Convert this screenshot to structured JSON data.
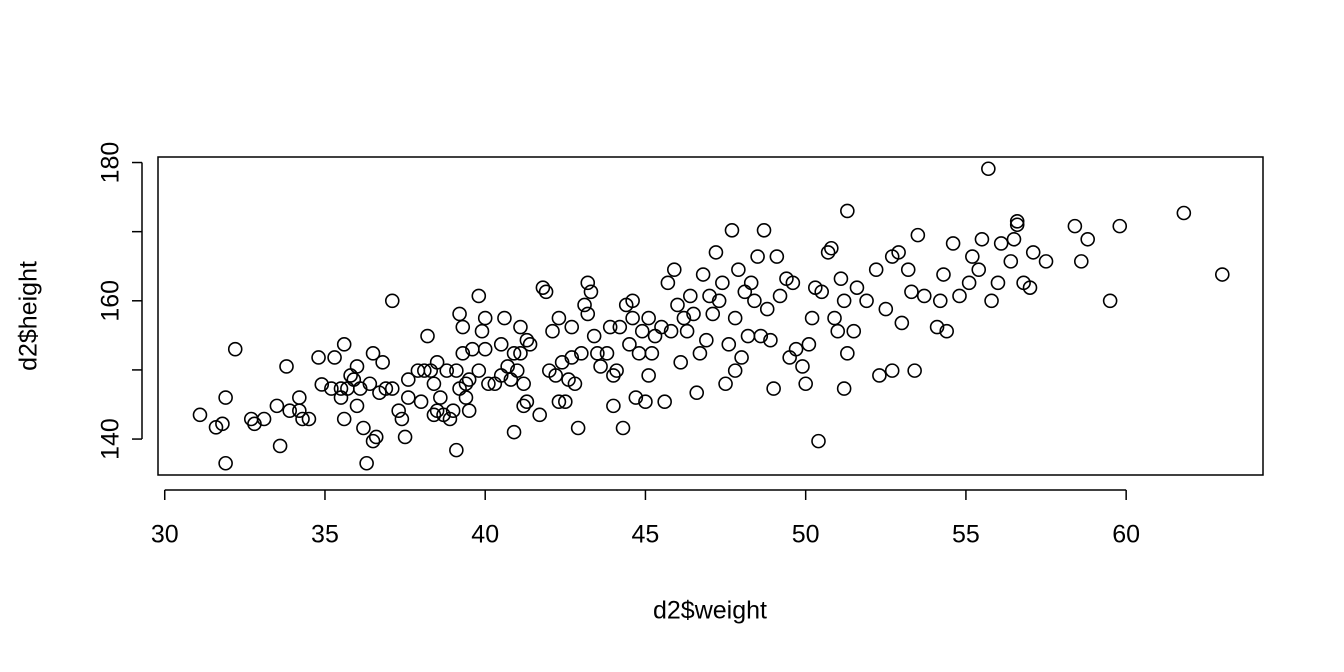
{
  "chart_data": {
    "type": "scatter",
    "xlabel": "d2$weight",
    "ylabel": "d2$height",
    "xlim": [
      29.79,
      64.27
    ],
    "ylim": [
      134.8,
      180.8
    ],
    "xticks": [
      30,
      35,
      40,
      45,
      50,
      55,
      60
    ],
    "yticks": [
      140,
      160,
      180
    ],
    "yminor_ticks": [
      150,
      170
    ],
    "color": "#000000",
    "x": [
      31.1,
      31.6,
      31.8,
      31.9,
      31.9,
      32.2,
      32.7,
      32.8,
      33.1,
      33.5,
      33.6,
      33.8,
      33.9,
      34.2,
      34.2,
      34.3,
      34.5,
      34.8,
      34.9,
      35.2,
      35.3,
      35.5,
      35.5,
      35.6,
      35.6,
      35.7,
      35.8,
      35.9,
      36.0,
      36.1,
      36.0,
      36.2,
      36.4,
      36.3,
      36.5,
      36.5,
      36.6,
      36.7,
      36.8,
      36.9,
      37.1,
      37.1,
      37.3,
      37.4,
      37.5,
      37.6,
      37.6,
      37.9,
      38.0,
      38.1,
      38.2,
      38.3,
      38.4,
      38.4,
      38.5,
      38.5,
      38.6,
      38.7,
      38.8,
      38.9,
      39.0,
      39.1,
      39.1,
      39.2,
      39.2,
      39.3,
      39.3,
      39.4,
      39.4,
      39.5,
      39.5,
      39.6,
      39.8,
      39.8,
      39.9,
      40.0,
      40.0,
      40.1,
      40.3,
      40.5,
      40.5,
      40.6,
      40.7,
      40.8,
      40.9,
      40.9,
      41.0,
      41.1,
      41.1,
      41.2,
      41.2,
      41.3,
      41.3,
      41.4,
      41.7,
      41.8,
      41.9,
      42.0,
      42.1,
      42.2,
      42.3,
      42.3,
      42.4,
      42.5,
      42.6,
      42.7,
      42.7,
      42.8,
      42.9,
      43.0,
      43.1,
      43.2,
      43.2,
      43.3,
      43.4,
      43.5,
      43.6,
      43.8,
      43.9,
      44.0,
      44.0,
      44.1,
      44.2,
      44.3,
      44.4,
      44.5,
      44.6,
      44.6,
      44.7,
      44.8,
      44.9,
      45.0,
      45.1,
      45.1,
      45.2,
      45.3,
      45.5,
      45.6,
      45.7,
      45.8,
      45.9,
      46.0,
      46.1,
      46.2,
      46.3,
      46.4,
      46.5,
      46.6,
      46.7,
      46.8,
      46.9,
      47.0,
      47.1,
      47.2,
      47.3,
      47.4,
      47.5,
      47.6,
      47.7,
      47.8,
      47.8,
      47.9,
      48.0,
      48.1,
      48.2,
      48.3,
      48.4,
      48.5,
      48.6,
      48.7,
      48.8,
      48.9,
      49.0,
      49.1,
      49.2,
      49.4,
      49.5,
      49.6,
      49.7,
      49.9,
      50.0,
      50.1,
      50.2,
      50.3,
      50.4,
      50.5,
      50.7,
      50.8,
      50.9,
      51.0,
      51.1,
      51.2,
      51.2,
      51.3,
      51.3,
      51.5,
      51.6,
      51.9,
      52.2,
      52.3,
      52.5,
      52.7,
      52.7,
      52.9,
      53.0,
      53.2,
      53.3,
      53.4,
      53.5,
      53.7,
      54.1,
      54.2,
      54.3,
      54.4,
      54.6,
      54.8,
      55.1,
      55.2,
      55.4,
      55.5,
      55.7,
      55.8,
      56.0,
      56.1,
      56.4,
      56.5,
      56.6,
      56.6,
      56.8,
      57.0,
      57.1,
      57.5,
      58.4,
      58.6,
      58.8,
      59.5,
      59.8,
      61.8,
      63.0
    ],
    "values": [
      143.5,
      141.7,
      142.2,
      136.5,
      146,
      153,
      142.9,
      142.2,
      142.9,
      144.8,
      139,
      150.5,
      144.1,
      146,
      144.1,
      142.9,
      142.9,
      151.8,
      147.9,
      147.3,
      151.8,
      147.3,
      146,
      153.7,
      142.9,
      147.3,
      149.2,
      148.6,
      150.5,
      147.3,
      144.8,
      141.6,
      148,
      136.5,
      152.4,
      139.7,
      140.3,
      146.7,
      151.1,
      147.3,
      147.3,
      160,
      144.1,
      142.9,
      140.3,
      146,
      148.6,
      149.9,
      145.4,
      149.9,
      154.9,
      149.9,
      148,
      143.5,
      144.1,
      151.1,
      146,
      143.5,
      149.9,
      142.9,
      144.1,
      149.9,
      138.4,
      147.3,
      158.1,
      156.2,
      152.4,
      148,
      146,
      144.1,
      148.6,
      153,
      160.7,
      149.9,
      155.6,
      157.5,
      153,
      148,
      148,
      149.2,
      153.7,
      157.5,
      150.5,
      148.6,
      152.4,
      141,
      149.9,
      156.2,
      152.4,
      148,
      144.8,
      154.3,
      145.4,
      153.7,
      143.5,
      161.9,
      161.3,
      149.9,
      155.6,
      149.2,
      145.4,
      157.5,
      151.1,
      145.4,
      148.6,
      151.8,
      156.2,
      148,
      141.6,
      152.4,
      159.4,
      158.1,
      162.6,
      161.3,
      154.9,
      152.4,
      150.5,
      152.4,
      156.2,
      149.2,
      144.8,
      149.9,
      156.2,
      141.6,
      159.4,
      153.7,
      160,
      157.5,
      146,
      152.4,
      155.6,
      145.4,
      149.2,
      157.5,
      152.4,
      154.9,
      156.2,
      145.4,
      162.6,
      155.6,
      164.5,
      159.4,
      151.1,
      157.5,
      155.6,
      160.7,
      158.1,
      146.7,
      152.4,
      163.8,
      154.3,
      160.7,
      158.1,
      167,
      160,
      162.6,
      148,
      153.7,
      170.2,
      157.5,
      149.9,
      164.5,
      151.8,
      161.3,
      154.9,
      162.6,
      160,
      166.4,
      154.9,
      170.2,
      158.8,
      154.3,
      147.3,
      166.4,
      160.7,
      163.2,
      151.8,
      162.6,
      153,
      150.5,
      148,
      153.7,
      157.5,
      161.9,
      139.7,
      161.3,
      167,
      167.6,
      157.5,
      155.6,
      163.2,
      160,
      147.3,
      173,
      152.4,
      155.6,
      161.9,
      160,
      164.5,
      149.2,
      158.8,
      166.4,
      149.9,
      167,
      156.8,
      164.5,
      161.3,
      149.9,
      169.5,
      160.7,
      156.2,
      160,
      163.8,
      155.6,
      168.3,
      160.7,
      162.6,
      166.4,
      164.5,
      168.9,
      179.1,
      160,
      162.6,
      168.3,
      165.7,
      168.9,
      171.5,
      171,
      162.6,
      161.9,
      167,
      165.7,
      170.8,
      165.7,
      168.9,
      160,
      170.8,
      172.7,
      163.8
    ]
  }
}
